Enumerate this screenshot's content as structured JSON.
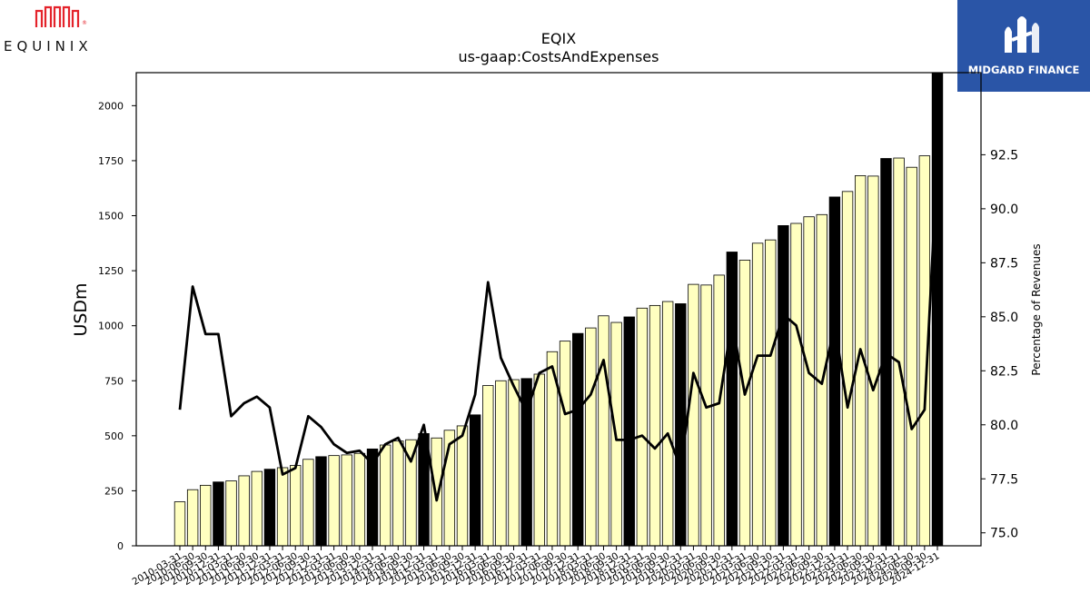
{
  "header": {
    "left_logo_text": "EQUINIX",
    "right_logo_text": "MIDGARD FINANCE"
  },
  "chart_data": {
    "type": "bar",
    "title": "EQIX",
    "subtitle": "us-gaap:CostsAndExpenses",
    "ylabel": "USDm",
    "y2label": "Percentage of Revenues",
    "ylim": [
      0,
      2150
    ],
    "y2lim": [
      74.4,
      96.3
    ],
    "yticks": [
      0,
      250,
      500,
      750,
      1000,
      1250,
      1500,
      1750,
      2000
    ],
    "y2ticks": [
      75.0,
      77.5,
      80.0,
      82.5,
      85.0,
      87.5,
      90.0,
      92.5
    ],
    "grid": false,
    "colors": {
      "bar_light": "#ffffc0",
      "bar_dark": "#000000",
      "line": "#000000",
      "bar_edge": "#000000"
    },
    "categories": [
      "2010-03-31",
      "2010-06-30",
      "2010-09-30",
      "2010-12-31",
      "2011-03-31",
      "2011-06-30",
      "2011-09-30",
      "2011-12-31",
      "2012-03-31",
      "2012-06-30",
      "2012-09-30",
      "2012-12-31",
      "2013-03-31",
      "2013-06-30",
      "2013-09-30",
      "2013-12-31",
      "2014-03-31",
      "2014-06-30",
      "2014-09-30",
      "2014-12-31",
      "2015-03-31",
      "2015-06-30",
      "2015-09-30",
      "2015-12-31",
      "2016-03-31",
      "2016-06-30",
      "2016-09-30",
      "2016-12-31",
      "2017-03-31",
      "2017-06-30",
      "2017-09-30",
      "2017-12-31",
      "2018-03-31",
      "2018-06-30",
      "2018-09-30",
      "2018-12-31",
      "2019-03-31",
      "2019-06-30",
      "2019-09-30",
      "2019-12-31",
      "2020-03-31",
      "2020-06-30",
      "2020-09-30",
      "2020-12-31",
      "2021-03-31",
      "2021-06-30",
      "2021-09-30",
      "2021-12-31",
      "2022-03-31",
      "2022-06-30",
      "2022-09-30",
      "2022-12-31",
      "2023-03-31",
      "2023-06-30",
      "2023-09-30",
      "2023-12-31",
      "2024-03-31",
      "2024-06-30",
      "2024-09-30",
      "2024-12-31"
    ],
    "series": [
      {
        "values": [
          200,
          255,
          275,
          290,
          295,
          318,
          338,
          348,
          355,
          365,
          393,
          405,
          410,
          413,
          420,
          440,
          458,
          476,
          482,
          510,
          490,
          525,
          545,
          595,
          728,
          750,
          755,
          760,
          780,
          882,
          930,
          965,
          990,
          1045,
          1015,
          1040,
          1080,
          1092,
          1110,
          1100,
          1188,
          1185,
          1230,
          1335,
          1298,
          1375,
          1390,
          1455,
          1465,
          1495,
          1505,
          1585,
          1610,
          1682,
          1680,
          1760,
          1762,
          1720,
          1772,
          2155
        ]
      },
      {
        "values": [
          80.7,
          86.4,
          84.2,
          84.2,
          80.4,
          81.0,
          81.3,
          80.8,
          77.7,
          78.0,
          80.4,
          79.9,
          79.1,
          78.7,
          78.8,
          78.2,
          79.1,
          79.4,
          78.3,
          80.0,
          76.5,
          79.1,
          79.5,
          81.4,
          86.6,
          83.1,
          81.8,
          80.6,
          82.4,
          82.7,
          80.5,
          80.7,
          81.4,
          83.0,
          79.3,
          79.3,
          79.5,
          78.9,
          79.6,
          78.0,
          82.4,
          80.8,
          81.0,
          84.8,
          81.4,
          83.2,
          83.2,
          85.1,
          84.6,
          82.4,
          81.9,
          84.6,
          80.8,
          83.5,
          81.6,
          83.3,
          82.9,
          79.8,
          80.7,
          92.3
        ]
      }
    ],
    "dark_bar_categories": [
      "2010-12-31",
      "2011-12-31",
      "2012-12-31",
      "2013-12-31",
      "2014-12-31",
      "2015-12-31",
      "2016-12-31",
      "2017-12-31",
      "2018-12-31",
      "2019-12-31",
      "2020-12-31",
      "2021-12-31",
      "2022-12-31",
      "2023-12-31",
      "2024-12-31"
    ]
  }
}
